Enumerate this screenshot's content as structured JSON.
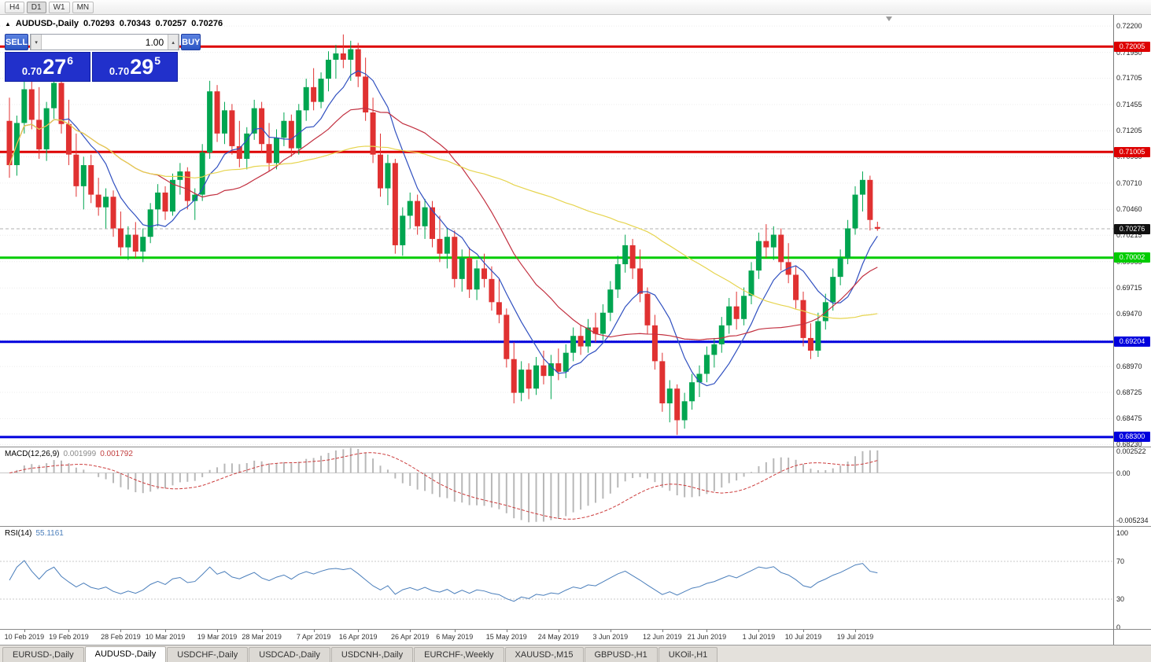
{
  "toolbar": {
    "timeframes": [
      "H4",
      "D1",
      "W1",
      "MN"
    ],
    "active": "D1"
  },
  "chart_header": {
    "symbol": "AUDUSD-,Daily",
    "open": "0.70293",
    "high": "0.70343",
    "low": "0.70257",
    "close": "0.70276"
  },
  "trade_panel": {
    "sell_label": "SELL",
    "buy_label": "BUY",
    "volume": "1.00",
    "sell_price": {
      "small": "0.70",
      "big": "27",
      "sup": "6"
    },
    "buy_price": {
      "small": "0.70",
      "big": "29",
      "sup": "5"
    }
  },
  "chart_data": {
    "type": "candlestick",
    "symbol": "AUDUSD",
    "timeframe": "Daily",
    "price_range": {
      "top": 0.72305,
      "bottom": 0.6821
    },
    "price_axis_ticks": [
      "0.72200",
      "0.71950",
      "0.71705",
      "0.71455",
      "0.71205",
      "0.70960",
      "0.70710",
      "0.70460",
      "0.70215",
      "0.69965",
      "0.69715",
      "0.69470",
      "0.69220",
      "0.68970",
      "0.68725",
      "0.68475",
      "0.68230"
    ],
    "current_price": {
      "value": 0.70276,
      "label": "0.70276",
      "color": "#111111"
    },
    "levels": [
      {
        "price": 0.72005,
        "label": "0.72005",
        "color": "#dd0000"
      },
      {
        "price": 0.71005,
        "label": "0.71005",
        "color": "#dd0000"
      },
      {
        "price": 0.70002,
        "label": "0.70002",
        "color": "#00cc00"
      },
      {
        "price": 0.69204,
        "label": "0.69204",
        "color": "#0000dd"
      },
      {
        "price": 0.683,
        "label": "0.68300",
        "color": "#0000dd"
      }
    ],
    "colors": {
      "bull": "#00a550",
      "bear": "#e03131"
    },
    "moving_averages": [
      {
        "period": 8,
        "color": "#3050c0"
      },
      {
        "period": 20,
        "color": "#c23040"
      },
      {
        "period": 55,
        "color": "#e6d44e"
      }
    ],
    "date_labels": [
      {
        "text": "10 Feb 2019",
        "i": 2
      },
      {
        "text": "19 Feb 2019",
        "i": 8
      },
      {
        "text": "28 Feb 2019",
        "i": 15
      },
      {
        "text": "10 Mar 2019",
        "i": 21
      },
      {
        "text": "19 Mar 2019",
        "i": 28
      },
      {
        "text": "28 Mar 2019",
        "i": 34
      },
      {
        "text": "7 Apr 2019",
        "i": 41
      },
      {
        "text": "16 Apr 2019",
        "i": 47
      },
      {
        "text": "26 Apr 2019",
        "i": 54
      },
      {
        "text": "6 May 2019",
        "i": 60
      },
      {
        "text": "15 May 2019",
        "i": 67
      },
      {
        "text": "24 May 2019",
        "i": 74
      },
      {
        "text": "3 Jun 2019",
        "i": 81
      },
      {
        "text": "12 Jun 2019",
        "i": 88
      },
      {
        "text": "21 Jun 2019",
        "i": 94
      },
      {
        "text": "1 Jul 2019",
        "i": 101
      },
      {
        "text": "10 Jul 2019",
        "i": 107
      },
      {
        "text": "19 Jul 2019",
        "i": 114
      }
    ],
    "candles": [
      [
        0.713,
        0.7152,
        0.7076,
        0.7088
      ],
      [
        0.7088,
        0.7135,
        0.7078,
        0.7128
      ],
      [
        0.7128,
        0.7168,
        0.7118,
        0.716
      ],
      [
        0.716,
        0.7176,
        0.7122,
        0.7131
      ],
      [
        0.7131,
        0.7162,
        0.7094,
        0.7103
      ],
      [
        0.7103,
        0.7148,
        0.7092,
        0.7142
      ],
      [
        0.7142,
        0.7174,
        0.7132,
        0.7166
      ],
      [
        0.7166,
        0.7172,
        0.7118,
        0.7127
      ],
      [
        0.7127,
        0.715,
        0.7088,
        0.7098
      ],
      [
        0.7098,
        0.7118,
        0.7058,
        0.7068
      ],
      [
        0.7068,
        0.7096,
        0.7046,
        0.7088
      ],
      [
        0.7088,
        0.7098,
        0.7052,
        0.706
      ],
      [
        0.706,
        0.7076,
        0.704,
        0.7048
      ],
      [
        0.7048,
        0.7066,
        0.7028,
        0.7058
      ],
      [
        0.7058,
        0.7064,
        0.702,
        0.7028
      ],
      [
        0.7028,
        0.7044,
        0.7002,
        0.701
      ],
      [
        0.701,
        0.703,
        0.6998,
        0.7022
      ],
      [
        0.7022,
        0.7034,
        0.7,
        0.7006
      ],
      [
        0.7006,
        0.7028,
        0.6996,
        0.702
      ],
      [
        0.702,
        0.7052,
        0.7014,
        0.7046
      ],
      [
        0.7046,
        0.707,
        0.703,
        0.7062
      ],
      [
        0.7062,
        0.7068,
        0.7036,
        0.7044
      ],
      [
        0.7044,
        0.708,
        0.704,
        0.7074
      ],
      [
        0.7074,
        0.709,
        0.706,
        0.7082
      ],
      [
        0.7082,
        0.7086,
        0.7046,
        0.7054
      ],
      [
        0.7054,
        0.7066,
        0.7036,
        0.706
      ],
      [
        0.706,
        0.7108,
        0.7054,
        0.71
      ],
      [
        0.71,
        0.7168,
        0.7094,
        0.7158
      ],
      [
        0.7158,
        0.7164,
        0.711,
        0.7118
      ],
      [
        0.7118,
        0.7148,
        0.7108,
        0.714
      ],
      [
        0.714,
        0.7146,
        0.7098,
        0.7106
      ],
      [
        0.7106,
        0.713,
        0.7086,
        0.7094
      ],
      [
        0.7094,
        0.7124,
        0.7084,
        0.7118
      ],
      [
        0.7118,
        0.715,
        0.7112,
        0.7142
      ],
      [
        0.7142,
        0.7148,
        0.71,
        0.7108
      ],
      [
        0.7108,
        0.7128,
        0.7082,
        0.709
      ],
      [
        0.709,
        0.7122,
        0.7084,
        0.7114
      ],
      [
        0.7114,
        0.7138,
        0.7106,
        0.713
      ],
      [
        0.713,
        0.7136,
        0.7096,
        0.7104
      ],
      [
        0.7104,
        0.7146,
        0.7098,
        0.714
      ],
      [
        0.714,
        0.717,
        0.713,
        0.7162
      ],
      [
        0.7162,
        0.718,
        0.714,
        0.7148
      ],
      [
        0.7148,
        0.7176,
        0.7142,
        0.717
      ],
      [
        0.717,
        0.7196,
        0.7158,
        0.7188
      ],
      [
        0.7188,
        0.7202,
        0.717,
        0.7194
      ],
      [
        0.7194,
        0.7212,
        0.718,
        0.7188
      ],
      [
        0.7188,
        0.7206,
        0.7168,
        0.7198
      ],
      [
        0.7198,
        0.7204,
        0.7162,
        0.7172
      ],
      [
        0.7172,
        0.719,
        0.713,
        0.7138
      ],
      [
        0.7138,
        0.7152,
        0.709,
        0.7098
      ],
      [
        0.7098,
        0.7118,
        0.7058,
        0.7066
      ],
      [
        0.7066,
        0.7098,
        0.705,
        0.709
      ],
      [
        0.709,
        0.7094,
        0.7004,
        0.7012
      ],
      [
        0.7012,
        0.7048,
        0.7002,
        0.704
      ],
      [
        0.704,
        0.7062,
        0.7028,
        0.7054
      ],
      [
        0.7054,
        0.706,
        0.7022,
        0.703
      ],
      [
        0.703,
        0.7056,
        0.7018,
        0.7048
      ],
      [
        0.7048,
        0.7054,
        0.701,
        0.7018
      ],
      [
        0.7018,
        0.704,
        0.6996,
        0.7004
      ],
      [
        0.7004,
        0.7028,
        0.699,
        0.702
      ],
      [
        0.702,
        0.7026,
        0.6972,
        0.698
      ],
      [
        0.698,
        0.7008,
        0.6968,
        0.7
      ],
      [
        0.7,
        0.701,
        0.6962,
        0.697
      ],
      [
        0.697,
        0.6998,
        0.696,
        0.699
      ],
      [
        0.699,
        0.7004,
        0.6972,
        0.698
      ],
      [
        0.698,
        0.6992,
        0.695,
        0.6958
      ],
      [
        0.6958,
        0.698,
        0.6938,
        0.6946
      ],
      [
        0.6946,
        0.6952,
        0.6896,
        0.6904
      ],
      [
        0.6904,
        0.692,
        0.6862,
        0.6872
      ],
      [
        0.6872,
        0.6902,
        0.6864,
        0.6894
      ],
      [
        0.6894,
        0.69,
        0.6866,
        0.6876
      ],
      [
        0.6876,
        0.6906,
        0.687,
        0.6898
      ],
      [
        0.6898,
        0.6912,
        0.688,
        0.6888
      ],
      [
        0.6888,
        0.6908,
        0.6866,
        0.69
      ],
      [
        0.69,
        0.6914,
        0.6884,
        0.6892
      ],
      [
        0.6892,
        0.6918,
        0.6886,
        0.691
      ],
      [
        0.691,
        0.6934,
        0.6902,
        0.6926
      ],
      [
        0.6926,
        0.6936,
        0.6908,
        0.6916
      ],
      [
        0.6916,
        0.6942,
        0.691,
        0.6934
      ],
      [
        0.6934,
        0.6948,
        0.692,
        0.6928
      ],
      [
        0.6928,
        0.6956,
        0.6922,
        0.6948
      ],
      [
        0.6948,
        0.6978,
        0.694,
        0.697
      ],
      [
        0.697,
        0.7002,
        0.6962,
        0.6994
      ],
      [
        0.6994,
        0.7022,
        0.6986,
        0.7012
      ],
      [
        0.7012,
        0.7018,
        0.698,
        0.699
      ],
      [
        0.699,
        0.7008,
        0.6958,
        0.6966
      ],
      [
        0.6966,
        0.6972,
        0.6928,
        0.6936
      ],
      [
        0.6936,
        0.6946,
        0.6894,
        0.6902
      ],
      [
        0.6902,
        0.691,
        0.6854,
        0.6862
      ],
      [
        0.6862,
        0.6884,
        0.6844,
        0.6876
      ],
      [
        0.6876,
        0.688,
        0.6832,
        0.6846
      ],
      [
        0.6846,
        0.6872,
        0.6838,
        0.6864
      ],
      [
        0.6864,
        0.689,
        0.6856,
        0.6882
      ],
      [
        0.6882,
        0.6898,
        0.6868,
        0.689
      ],
      [
        0.689,
        0.6916,
        0.6882,
        0.6908
      ],
      [
        0.6908,
        0.6924,
        0.6896,
        0.6918
      ],
      [
        0.6918,
        0.6944,
        0.691,
        0.6936
      ],
      [
        0.6936,
        0.6962,
        0.6928,
        0.6954
      ],
      [
        0.6954,
        0.6968,
        0.6932,
        0.6942
      ],
      [
        0.6942,
        0.6972,
        0.6936,
        0.6964
      ],
      [
        0.6964,
        0.6996,
        0.6956,
        0.6988
      ],
      [
        0.6988,
        0.7024,
        0.698,
        0.7016
      ],
      [
        0.7016,
        0.7032,
        0.7,
        0.701
      ],
      [
        0.701,
        0.703,
        0.6998,
        0.7022
      ],
      [
        0.7022,
        0.7028,
        0.6988,
        0.6996
      ],
      [
        0.6996,
        0.7014,
        0.6976,
        0.6984
      ],
      [
        0.6984,
        0.6992,
        0.6952,
        0.696
      ],
      [
        0.696,
        0.6968,
        0.6916,
        0.6924
      ],
      [
        0.6924,
        0.6938,
        0.6904,
        0.6912
      ],
      [
        0.6912,
        0.6948,
        0.6906,
        0.694
      ],
      [
        0.694,
        0.6966,
        0.6932,
        0.6958
      ],
      [
        0.6958,
        0.699,
        0.695,
        0.6982
      ],
      [
        0.6982,
        0.7008,
        0.6974,
        0.7
      ],
      [
        0.7,
        0.7036,
        0.6994,
        0.7028
      ],
      [
        0.7028,
        0.7068,
        0.7022,
        0.706
      ],
      [
        0.706,
        0.7082,
        0.7044,
        0.7074
      ],
      [
        0.7074,
        0.7078,
        0.7026,
        0.7036
      ],
      [
        0.70293,
        0.70343,
        0.70257,
        0.70276
      ]
    ]
  },
  "macd": {
    "label": "MACD(12,26,9)",
    "value_main": "0.001999",
    "value_signal": "0.001792",
    "params": {
      "fast": 12,
      "slow": 26,
      "signal": 9
    },
    "range": {
      "max": 0.0028,
      "min": -0.0058
    },
    "axis": [
      {
        "value": 0.002522,
        "label": "0.002522"
      },
      {
        "value": 0,
        "label": "0.00"
      },
      {
        "value": -0.005234,
        "label": "-0.005234"
      }
    ],
    "colors": {
      "histogram": "#b8b8b8",
      "signal": "#cc3b3b"
    }
  },
  "rsi": {
    "label": "RSI(14)",
    "value": "55.1161",
    "period": 14,
    "levels": [
      70,
      30
    ],
    "axis": [
      {
        "value": 100,
        "label": "100"
      },
      {
        "value": 70,
        "label": "70"
      },
      {
        "value": 30,
        "label": "30"
      },
      {
        "value": 0,
        "label": "0"
      }
    ],
    "color": "#4a7ebb"
  },
  "tabs": [
    {
      "label": "EURUSD-,Daily",
      "active": false
    },
    {
      "label": "AUDUSD-,Daily",
      "active": true
    },
    {
      "label": "USDCHF-,Daily",
      "active": false
    },
    {
      "label": "USDCAD-,Daily",
      "active": false
    },
    {
      "label": "USDCNH-,Daily",
      "active": false
    },
    {
      "label": "EURCHF-,Weekly",
      "active": false
    },
    {
      "label": "XAUUSD-,M15",
      "active": false
    },
    {
      "label": "GBPUSD-,H1",
      "active": false
    },
    {
      "label": "UKOil-,H1",
      "active": false
    }
  ]
}
